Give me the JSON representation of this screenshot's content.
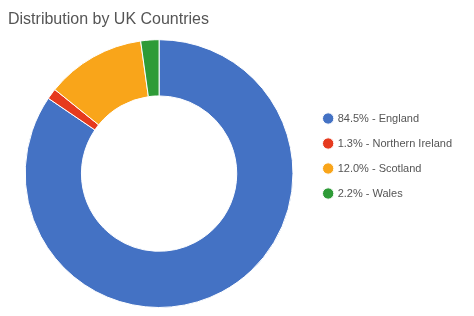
{
  "chart_data": {
    "type": "doughnut",
    "title": "Distribution by UK Countries",
    "categories": [
      "84.5% - England",
      "1.3% - Northern Ireland",
      "12.0% - Scotland",
      "2.2% - Wales"
    ],
    "values": [
      84.5,
      1.3,
      12.0,
      2.2
    ],
    "colors": [
      "#4472C4",
      "#E63A1E",
      "#F9A51A",
      "#2E9B37"
    ],
    "legend": "right"
  }
}
